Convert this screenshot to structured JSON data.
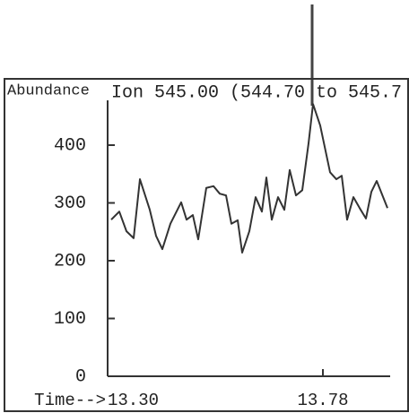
{
  "chart_data": {
    "type": "line",
    "title": "Ion 545.00 (544.70 to 545.7",
    "y_label": "Abundance",
    "x_label": "Time-->",
    "x": [
      13.308,
      13.326,
      13.342,
      13.358,
      13.372,
      13.394,
      13.408,
      13.422,
      13.44,
      13.464,
      13.476,
      13.49,
      13.502,
      13.52,
      13.536,
      13.55,
      13.564,
      13.576,
      13.59,
      13.6,
      13.616,
      13.63,
      13.644,
      13.654,
      13.666,
      13.68,
      13.694,
      13.706,
      13.72,
      13.734,
      13.748,
      13.758,
      13.774,
      13.796,
      13.81,
      13.822,
      13.834,
      13.848,
      13.862,
      13.876,
      13.888,
      13.9,
      13.924
    ],
    "series": [
      {
        "color": "#333333",
        "values": [
          271,
          285,
          251,
          239,
          341,
          288,
          243,
          220,
          264,
          301,
          271,
          279,
          237,
          326,
          329,
          316,
          313,
          264,
          270,
          214,
          251,
          310,
          285,
          344,
          271,
          310,
          288,
          357,
          313,
          322,
          403,
          471,
          434,
          353,
          341,
          347,
          271,
          310,
          291,
          273,
          319,
          338,
          291
        ]
      }
    ],
    "xlim": [
      13.3,
      13.93
    ],
    "xticks": [
      {
        "value": 13.3,
        "label": "13.30"
      },
      13.78
    ],
    "ylim": [
      0,
      500
    ],
    "yticks": [
      0,
      100,
      200,
      300,
      400
    ]
  }
}
